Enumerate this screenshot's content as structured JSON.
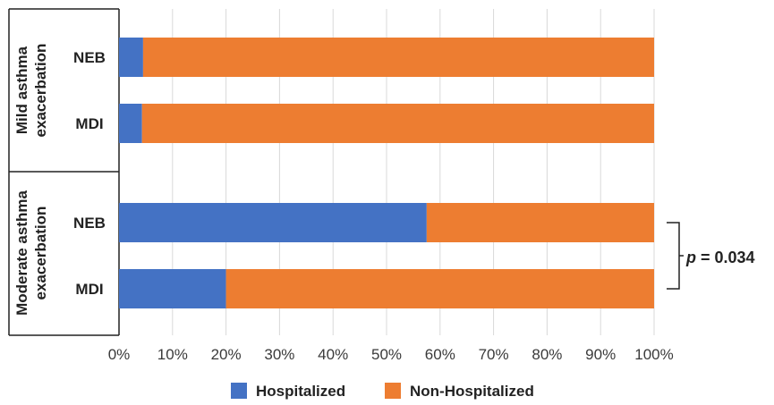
{
  "chart_data": {
    "type": "bar",
    "orientation": "horizontal",
    "stacked": true,
    "groups": [
      {
        "label": "Mild asthma exacerbation",
        "categories": [
          "NEB",
          "MDI"
        ]
      },
      {
        "label": "Moderate asthma exacerbation",
        "categories": [
          "NEB",
          "MDI"
        ]
      }
    ],
    "categories": [
      "NEB",
      "MDI",
      "NEB",
      "MDI"
    ],
    "series": [
      {
        "name": "Hospitalized",
        "color": "#4472C4",
        "values": [
          4.5,
          4.3,
          57.5,
          20.0
        ]
      },
      {
        "name": "Non-Hospitalized",
        "color": "#ED7D31",
        "values": [
          95.5,
          95.7,
          42.5,
          80.0
        ]
      }
    ],
    "xlim": [
      0,
      100
    ],
    "x_ticks": [
      "0%",
      "10%",
      "20%",
      "30%",
      "40%",
      "50%",
      "60%",
      "70%",
      "80%",
      "90%",
      "100%"
    ],
    "grid": true,
    "legend": "bottom",
    "annotation": {
      "prefix": "p",
      "text": " = 0.034",
      "applies_to": "Moderate asthma exacerbation"
    }
  }
}
